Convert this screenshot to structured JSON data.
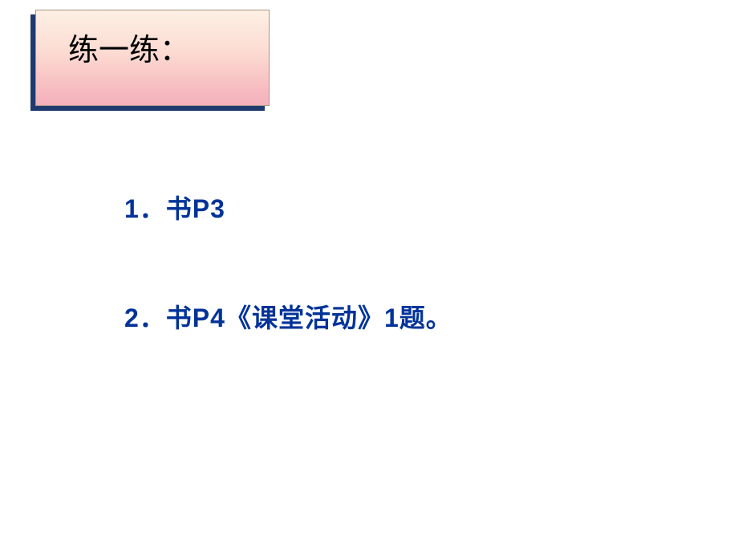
{
  "header": {
    "title": "练一练：",
    "title_fontsize": 38,
    "title_color": "#000000",
    "box_bg_gradient_top": "#fdf0e4",
    "box_bg_gradient_bottom": "#f4b0bc",
    "box_shadow_color": "#1f3a6e"
  },
  "items": [
    {
      "text": "1．书P3",
      "fontsize": 32,
      "color": "#003399",
      "font_weight": "bold"
    },
    {
      "text": "2．书P4《课堂活动》1题。",
      "fontsize": 32,
      "color": "#003399",
      "font_weight": "bold"
    }
  ],
  "background_color": "#ffffff"
}
